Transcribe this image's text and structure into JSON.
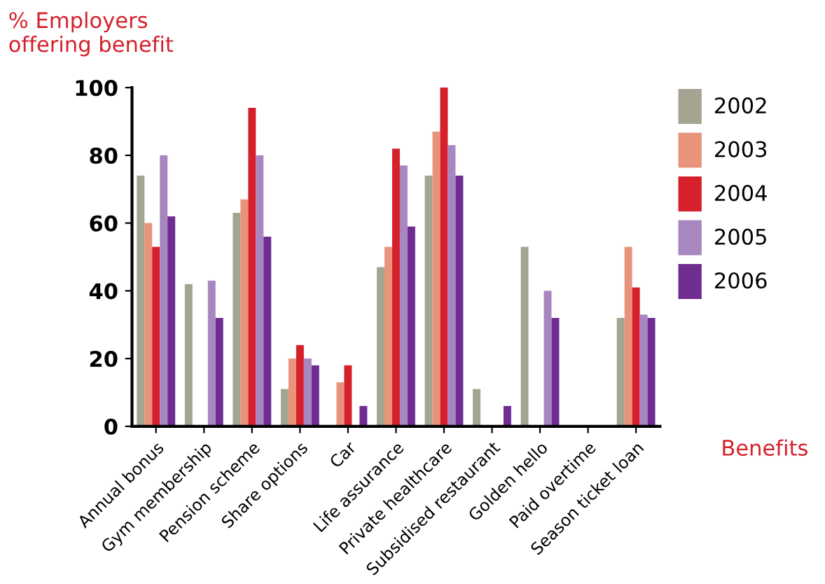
{
  "chart_data": {
    "type": "bar",
    "ylabel": "% Employers\noffering benefit",
    "xlabel": "Benefits",
    "categories": [
      "Annual bonus",
      "Gym membership",
      "Pension scheme",
      "Share options",
      "Car",
      "Life assurance",
      "Private healthcare",
      "Subsidised restaurant",
      "Golden hello",
      "Paid overtime",
      "Season ticket loan"
    ],
    "series": [
      {
        "name": "2002",
        "color": "#a5a392",
        "values": [
          74,
          42,
          63,
          11,
          0,
          47,
          74,
          11,
          53,
          0,
          32
        ]
      },
      {
        "name": "2003",
        "color": "#e8937a",
        "values": [
          60,
          0,
          67,
          20,
          13,
          53,
          87,
          0,
          0,
          0,
          53
        ]
      },
      {
        "name": "2004",
        "color": "#d6202b",
        "values": [
          53,
          0,
          94,
          24,
          18,
          82,
          100,
          0,
          0,
          0,
          41
        ]
      },
      {
        "name": "2005",
        "color": "#a887c0",
        "values": [
          80,
          43,
          80,
          20,
          0,
          77,
          83,
          0,
          40,
          0,
          33
        ]
      },
      {
        "name": "2006",
        "color": "#6f2c91",
        "values": [
          62,
          32,
          56,
          18,
          6,
          59,
          74,
          6,
          32,
          0,
          32
        ]
      }
    ],
    "ylim": [
      0,
      100
    ],
    "yticks": [
      0,
      20,
      40,
      60,
      80,
      100
    ],
    "grid": false,
    "legend": "right"
  }
}
